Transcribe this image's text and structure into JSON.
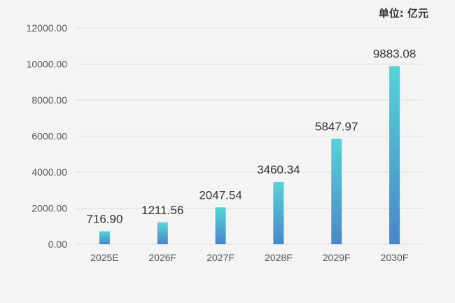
{
  "unit_label": "单位: 亿元",
  "colors": {
    "background": "#f4f4f4",
    "grid": "#dedede",
    "bar_top": "#56d3d6",
    "bar_bottom": "#4a86c9",
    "tick_text": "#555555",
    "value_text": "#333333"
  },
  "chart_data": {
    "type": "bar",
    "title": "",
    "xlabel": "",
    "ylabel": "",
    "categories": [
      "2025E",
      "2026F",
      "2027F",
      "2028F",
      "2029F",
      "2030F"
    ],
    "values": [
      716.9,
      1211.56,
      2047.54,
      3460.34,
      5847.97,
      9883.08
    ],
    "value_labels": [
      "716.90",
      "1211.56",
      "2047.54",
      "3460.34",
      "5847.97",
      "9883.08"
    ],
    "ylim": [
      0,
      12000
    ],
    "yticks": [
      0,
      2000,
      4000,
      6000,
      8000,
      10000,
      12000
    ],
    "ytick_labels": [
      "0.00",
      "2000.00",
      "4000.00",
      "6000.00",
      "8000.00",
      "10000.00",
      "12000.00"
    ],
    "grid": true,
    "legend": "none"
  }
}
